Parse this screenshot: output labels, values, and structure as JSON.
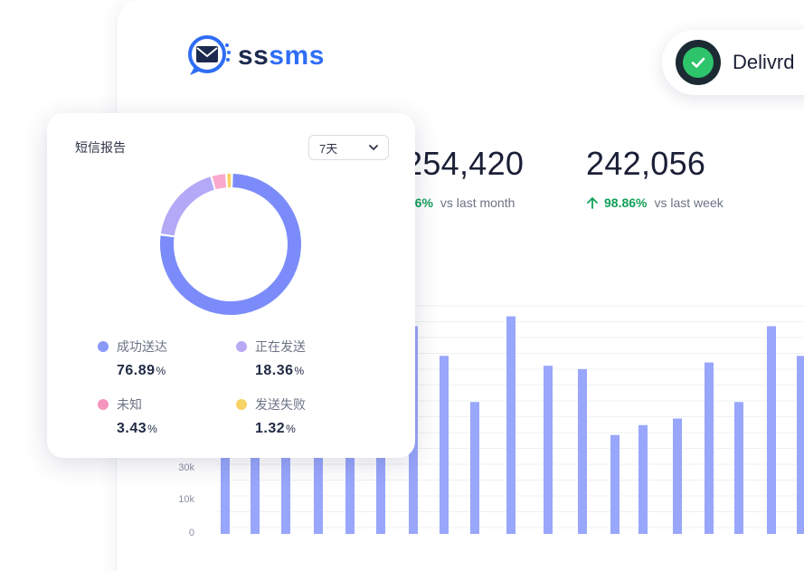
{
  "brand": {
    "name_part1": "ss",
    "name_part2": "sms",
    "primary_color": "#2f6df6",
    "dark_color": "#1b2a4e"
  },
  "status_pill": {
    "label": "Delivrd",
    "icon": "check-icon",
    "color": "#2ec46b"
  },
  "stats": [
    {
      "value": "254,420",
      "change": ".56%",
      "comparison": "vs last month",
      "trend": "up"
    },
    {
      "value": "242,056",
      "change": "98.86%",
      "comparison": "vs last week",
      "trend": "up"
    }
  ],
  "bar_chart": {
    "y_ticks": [
      "0",
      "10k",
      "30k"
    ],
    "bar_color": "#98a6fb"
  },
  "chart_data": {
    "type": "bar",
    "ylim": [
      0,
      70000
    ],
    "y_ticks": [
      "0",
      "10k",
      "30k"
    ],
    "values": [
      26000,
      41000,
      41000,
      41000,
      41000,
      41000,
      63000,
      54000,
      40000,
      66000,
      51000,
      50000,
      30000,
      33000,
      35000,
      52000,
      40000,
      63000,
      54000
    ]
  },
  "report_card": {
    "title": "短信报告",
    "range": {
      "selected": "7天"
    },
    "chart_data": {
      "type": "pie",
      "labels": [
        "成功送达",
        "正在发送",
        "未知",
        "发送失败"
      ],
      "values": [
        76.89,
        18.36,
        3.43,
        1.32
      ],
      "colors": [
        "#7b8cfa",
        "#b3a9f7",
        "#f8a9cd",
        "#f7d264"
      ]
    },
    "legend": [
      {
        "label": "成功送达",
        "value": "76.89",
        "unit": "%",
        "color": "#8b9af9"
      },
      {
        "label": "正在发送",
        "value": "18.36",
        "unit": "%",
        "color": "#b9a9f5"
      },
      {
        "label": "未知",
        "value": "3.43",
        "unit": "%",
        "color": "#f595bf"
      },
      {
        "label": "发送失败",
        "value": "1.32",
        "unit": "%",
        "color": "#f7d264"
      }
    ]
  }
}
